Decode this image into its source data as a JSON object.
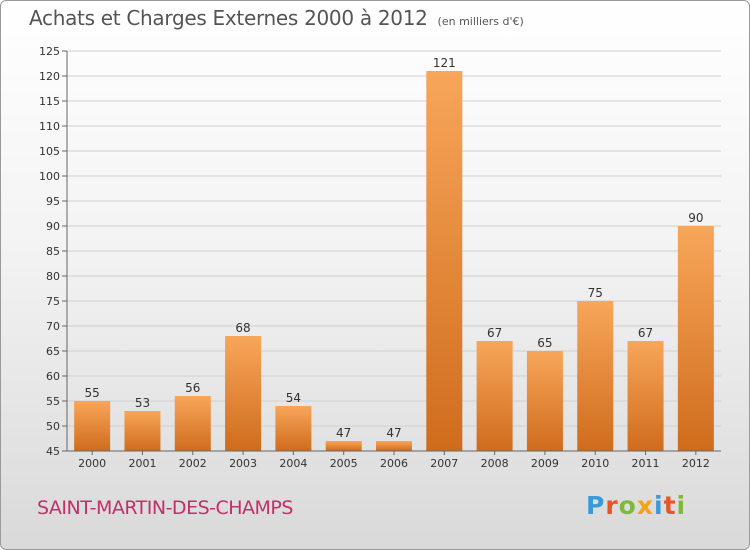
{
  "header": {
    "title": "Achats et Charges Externes 2000 à 2012",
    "unit": "(en milliers d'€)"
  },
  "footer": {
    "commune": "SAINT-MARTIN-DES-CHAMPS",
    "logo": "Proxiti"
  },
  "colors": {
    "bar_light": "#f8a65a",
    "bar_dark": "#cf6c1c",
    "grid": "#d0d0d0"
  },
  "chart_data": {
    "type": "bar",
    "title": "Achats et Charges Externes 2000 à 2012",
    "subtitle": "(en milliers d'€)",
    "xlabel": "",
    "ylabel": "",
    "ylim": [
      45,
      125
    ],
    "yticks": [
      45,
      50,
      55,
      60,
      65,
      70,
      75,
      80,
      85,
      90,
      95,
      100,
      105,
      110,
      115,
      120,
      125
    ],
    "grid": true,
    "categories": [
      "2000",
      "2001",
      "2002",
      "2003",
      "2004",
      "2005",
      "2006",
      "2007",
      "2008",
      "2009",
      "2010",
      "2011",
      "2012"
    ],
    "values": [
      55,
      53,
      56,
      68,
      54,
      47,
      47,
      121,
      67,
      65,
      75,
      67,
      90
    ]
  }
}
